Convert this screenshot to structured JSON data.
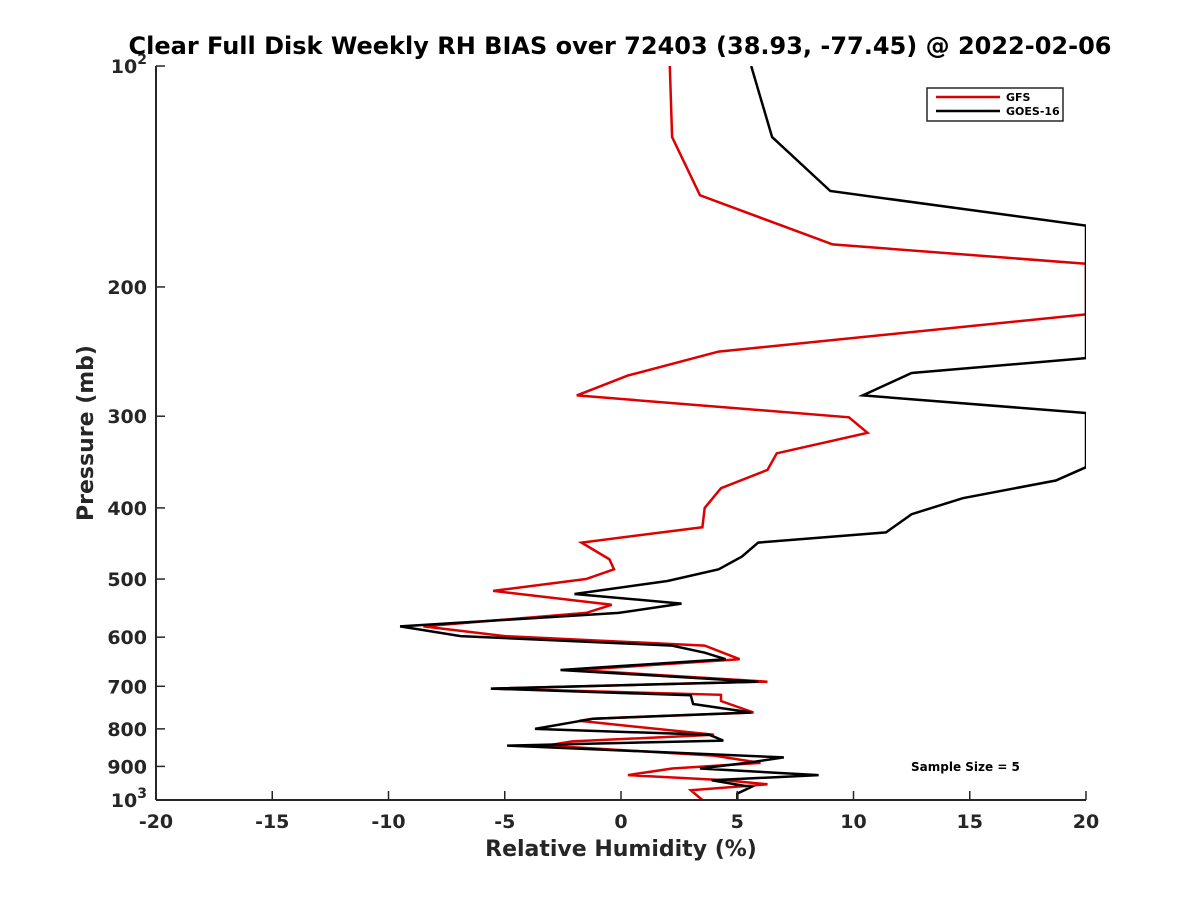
{
  "chart_data": {
    "type": "line",
    "title": "Clear Full Disk Weekly RH BIAS over 72403 (38.93, -77.45) @ 2022-02-06",
    "xlabel": "Relative Humidity (%)",
    "ylabel": "Pressure (mb)",
    "xlim": [
      -20,
      20
    ],
    "ylim": [
      100,
      1000
    ],
    "y_scale": "log",
    "y_reversed": true,
    "grid": false,
    "legend_position": "top-right",
    "x_ticks": [
      {
        "value": -20,
        "label": "-20"
      },
      {
        "value": -15,
        "label": "-15"
      },
      {
        "value": -10,
        "label": "-10"
      },
      {
        "value": -5,
        "label": "-5"
      },
      {
        "value": 0,
        "label": "0"
      },
      {
        "value": 5,
        "label": "5"
      },
      {
        "value": 10,
        "label": "10"
      },
      {
        "value": 15,
        "label": "15"
      },
      {
        "value": 20,
        "label": "20"
      }
    ],
    "y_ticks": [
      {
        "value": 100,
        "base": "10",
        "exp": "2"
      },
      {
        "value": 200,
        "base": "200",
        "exp": ""
      },
      {
        "value": 300,
        "base": "300",
        "exp": ""
      },
      {
        "value": 400,
        "base": "400",
        "exp": ""
      },
      {
        "value": 500,
        "base": "500",
        "exp": ""
      },
      {
        "value": 600,
        "base": "600",
        "exp": ""
      },
      {
        "value": 700,
        "base": "700",
        "exp": ""
      },
      {
        "value": 800,
        "base": "800",
        "exp": ""
      },
      {
        "value": 900,
        "base": "900",
        "exp": ""
      },
      {
        "value": 1000,
        "base": "10",
        "exp": "3"
      }
    ],
    "annotation": "Sample Size = 5",
    "series": [
      {
        "name": "GFS",
        "color": "#dd0000",
        "points": [
          [
            2.1,
            100
          ],
          [
            2.2,
            125
          ],
          [
            3.4,
            150
          ],
          [
            9.1,
            175
          ],
          [
            20,
            186
          ],
          [
            20,
            218
          ],
          [
            4.2,
            245
          ],
          [
            0.3,
            264
          ],
          [
            -1.9,
            281
          ],
          [
            9.8,
            301
          ],
          [
            10.6,
            316
          ],
          [
            6.7,
            337
          ],
          [
            6.3,
            355
          ],
          [
            4.3,
            376
          ],
          [
            3.6,
            400
          ],
          [
            3.5,
            425
          ],
          [
            -1.7,
            446
          ],
          [
            -0.5,
            470
          ],
          [
            -0.3,
            485
          ],
          [
            -1.5,
            500
          ],
          [
            -5.5,
            519
          ],
          [
            -0.4,
            542
          ],
          [
            -1.5,
            556
          ],
          [
            -8.5,
            580
          ],
          [
            -5,
            598
          ],
          [
            3.6,
            616
          ],
          [
            5.1,
            643
          ],
          [
            -1.9,
            665
          ],
          [
            6.3,
            690
          ],
          [
            5.8,
            690
          ],
          [
            -5.5,
            705
          ],
          [
            4.3,
            719
          ],
          [
            4.3,
            733
          ],
          [
            5.7,
            760
          ],
          [
            -1.2,
            775
          ],
          [
            -1.8,
            780
          ],
          [
            4,
            815
          ],
          [
            -2.1,
            832
          ],
          [
            -3.2,
            843
          ],
          [
            4,
            870
          ],
          [
            6,
            890
          ],
          [
            2.2,
            906
          ],
          [
            0.3,
            925
          ],
          [
            4.5,
            940
          ],
          [
            6.3,
            952
          ],
          [
            3,
            970
          ],
          [
            3.5,
            1000
          ]
        ]
      },
      {
        "name": "GOES-16",
        "color": "#000000",
        "points": [
          [
            5.6,
            100
          ],
          [
            6.5,
            125
          ],
          [
            9,
            148
          ],
          [
            20,
            165
          ],
          [
            20,
            250
          ],
          [
            12.5,
            262
          ],
          [
            10.4,
            281
          ],
          [
            20,
            297
          ],
          [
            20,
            352
          ],
          [
            18.7,
            367
          ],
          [
            14.7,
            388
          ],
          [
            12.5,
            408
          ],
          [
            11.4,
            432
          ],
          [
            5.9,
            446
          ],
          [
            5.2,
            466
          ],
          [
            4.2,
            485
          ],
          [
            2,
            503
          ],
          [
            -2,
            524
          ],
          [
            2.6,
            540
          ],
          [
            -0.1,
            556
          ],
          [
            -9.5,
            580
          ],
          [
            -6.9,
            598
          ],
          [
            2.2,
            616
          ],
          [
            3.6,
            630
          ],
          [
            4.5,
            643
          ],
          [
            -2.6,
            665
          ],
          [
            5.9,
            690
          ],
          [
            -5.6,
            705
          ],
          [
            3,
            720
          ],
          [
            3.1,
            740
          ],
          [
            5.6,
            760
          ],
          [
            -1.2,
            775
          ],
          [
            -3.7,
            800
          ],
          [
            3.8,
            815
          ],
          [
            4.4,
            830
          ],
          [
            -4.9,
            843
          ],
          [
            7,
            875
          ],
          [
            5.4,
            890
          ],
          [
            3.4,
            906
          ],
          [
            8.5,
            925
          ],
          [
            3.9,
            940
          ],
          [
            5.6,
            960
          ],
          [
            5,
            980
          ],
          [
            5,
            1000
          ]
        ]
      }
    ]
  }
}
